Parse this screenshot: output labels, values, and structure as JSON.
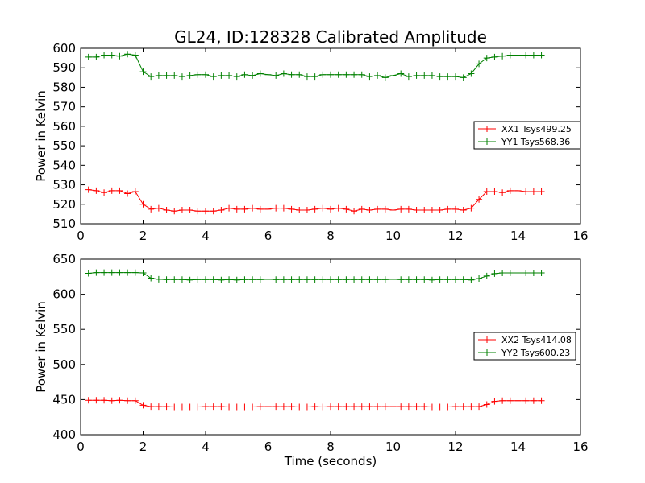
{
  "title": "GL24, ID:128328 Calibrated Amplitude",
  "chart_data": [
    {
      "type": "line",
      "ylabel": "Power in Kelvin",
      "xlabel": "",
      "xlim": [
        0,
        16
      ],
      "ylim": [
        510,
        600
      ],
      "xticks": [
        0,
        2,
        4,
        6,
        8,
        10,
        12,
        14,
        16
      ],
      "yticks": [
        510,
        520,
        530,
        540,
        550,
        560,
        570,
        580,
        590,
        600
      ],
      "legend_position": "right",
      "x": [
        0.25,
        0.5,
        0.75,
        1.0,
        1.25,
        1.5,
        1.75,
        2.0,
        2.25,
        2.5,
        2.75,
        3.0,
        3.25,
        3.5,
        3.75,
        4.0,
        4.25,
        4.5,
        4.75,
        5.0,
        5.25,
        5.5,
        5.75,
        6.0,
        6.25,
        6.5,
        6.75,
        7.0,
        7.25,
        7.5,
        7.75,
        8.0,
        8.25,
        8.5,
        8.75,
        9.0,
        9.25,
        9.5,
        9.75,
        10.0,
        10.25,
        10.5,
        10.75,
        11.0,
        11.25,
        11.5,
        11.75,
        12.0,
        12.25,
        12.5,
        12.75,
        13.0,
        13.25,
        13.5,
        13.75,
        14.0,
        14.25,
        14.5,
        14.75
      ],
      "series": [
        {
          "name": "XX1 Tsys499.25",
          "color": "#ff0000",
          "values": [
            527.5,
            527,
            526,
            527,
            527,
            525.5,
            526.5,
            520,
            517.5,
            518,
            517,
            516.5,
            517,
            517,
            516.5,
            516.5,
            516.5,
            517,
            518,
            517.5,
            517.5,
            518,
            517.5,
            517.5,
            518,
            518,
            517.5,
            517,
            517,
            517.5,
            518,
            517.5,
            518,
            517.5,
            516.5,
            517.5,
            517,
            517.5,
            517.5,
            517,
            517.5,
            517.5,
            517,
            517,
            517,
            517,
            517.5,
            517.5,
            517,
            518,
            522.5,
            526.5,
            526.5,
            526,
            527,
            527,
            526.5,
            526.5,
            526.5
          ]
        },
        {
          "name": "YY1 Tsys568.36",
          "color": "#008000",
          "values": [
            595.5,
            595.5,
            596.5,
            596.5,
            596,
            597,
            596.5,
            588,
            585.5,
            586,
            586,
            586,
            585.5,
            586,
            586.5,
            586.5,
            585.5,
            586,
            586,
            585.5,
            586.5,
            586,
            587,
            586.5,
            586,
            587,
            586.5,
            586.5,
            585.5,
            585.5,
            586.5,
            586.5,
            586.5,
            586.5,
            586.5,
            586.5,
            585.5,
            586,
            585,
            586,
            587,
            585.5,
            586,
            586,
            586,
            585.5,
            585.5,
            585.5,
            585,
            587,
            592,
            595,
            595.5,
            596,
            596.5,
            596.5,
            596.5,
            596.5,
            596.5
          ]
        }
      ]
    },
    {
      "type": "line",
      "ylabel": "Power in Kelvin",
      "xlabel": "Time (seconds)",
      "xlim": [
        0,
        16
      ],
      "ylim": [
        400,
        650
      ],
      "xticks": [
        0,
        2,
        4,
        6,
        8,
        10,
        12,
        14,
        16
      ],
      "yticks": [
        400,
        450,
        500,
        550,
        600,
        650
      ],
      "legend_position": "right",
      "x": [
        0.25,
        0.5,
        0.75,
        1.0,
        1.25,
        1.5,
        1.75,
        2.0,
        2.25,
        2.5,
        2.75,
        3.0,
        3.25,
        3.5,
        3.75,
        4.0,
        4.25,
        4.5,
        4.75,
        5.0,
        5.25,
        5.5,
        5.75,
        6.0,
        6.25,
        6.5,
        6.75,
        7.0,
        7.25,
        7.5,
        7.75,
        8.0,
        8.25,
        8.5,
        8.75,
        9.0,
        9.25,
        9.5,
        9.75,
        10.0,
        10.25,
        10.5,
        10.75,
        11.0,
        11.25,
        11.5,
        11.75,
        12.0,
        12.25,
        12.5,
        12.75,
        13.0,
        13.25,
        13.5,
        13.75,
        14.0,
        14.25,
        14.5,
        14.75
      ],
      "series": [
        {
          "name": "XX2 Tsys414.08",
          "color": "#ff0000",
          "values": [
            449,
            449,
            449,
            448.5,
            449,
            448.5,
            448.5,
            442,
            440,
            440,
            440,
            439.5,
            439.5,
            439.5,
            439.5,
            440,
            440,
            440,
            439.5,
            439.5,
            439.5,
            439.5,
            440,
            440,
            440,
            440,
            440,
            439.5,
            439.5,
            440,
            439.5,
            440,
            440,
            440,
            440,
            440,
            440,
            440,
            440,
            440,
            440,
            440,
            440,
            440,
            439.5,
            439.5,
            439.5,
            440,
            440,
            440,
            440,
            443,
            447.5,
            448.5,
            448.5,
            448.5,
            448.5,
            448.5,
            448.5
          ]
        },
        {
          "name": "YY2 Tsys600.23",
          "color": "#008000",
          "values": [
            630,
            631,
            631,
            631,
            631,
            631,
            631,
            630.5,
            623,
            621.5,
            621,
            621,
            621,
            620.5,
            621,
            621,
            621,
            620.5,
            621,
            620.5,
            621,
            621,
            621,
            621.5,
            621,
            621,
            621,
            621,
            621,
            621,
            621,
            621,
            621,
            621,
            621,
            621,
            621,
            621,
            621,
            621.5,
            621,
            621,
            621,
            621,
            620.5,
            621,
            621,
            621,
            621,
            620.5,
            622.5,
            626,
            629.5,
            630.5,
            630.5,
            630.5,
            630.5,
            630.5,
            630.5
          ]
        }
      ]
    }
  ]
}
